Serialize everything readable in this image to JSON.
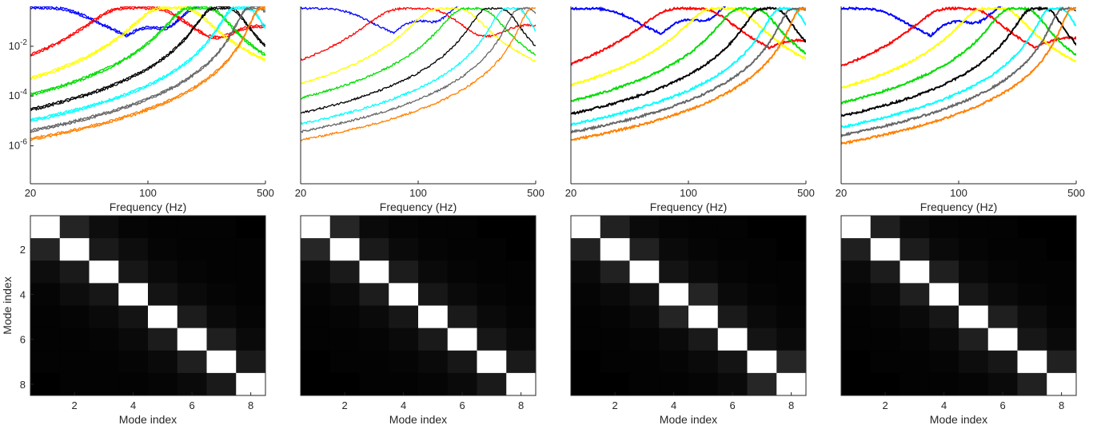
{
  "chart_data": [
    {
      "type": "line",
      "panel": 1,
      "xlabel": "Frequency (Hz)",
      "xscale": "log",
      "yscale": "log",
      "xlim": [
        20,
        500
      ],
      "ylim": [
        3e-08,
        0.4
      ],
      "xticks": [
        20,
        100,
        500
      ],
      "yticks": [
        {
          "value": 0.01,
          "label": "10^-2"
        },
        {
          "value": 0.0001,
          "label": "10^-4"
        },
        {
          "value": 1e-06,
          "label": "10^-6"
        }
      ],
      "series": [
        {
          "color": "#0000ff",
          "peak_hz": 20,
          "width": 0.6,
          "floor": 0.0004,
          "floor_slope": 0.9,
          "doubled": true
        },
        {
          "color": "#ff0000",
          "peak_hz": 88,
          "width": 0.42,
          "floor": 0.0025,
          "floor_slope": 0.3,
          "doubled": true
        },
        {
          "color": "#ffff00",
          "peak_hz": 140,
          "width": 0.32,
          "floor": 1.8e-05,
          "floor_slope": 0.45,
          "doubled": true
        },
        {
          "color": "#00dd00",
          "peak_hz": 200,
          "width": 0.26,
          "floor": 4e-06,
          "floor_slope": 0.55,
          "doubled": true
        },
        {
          "color": "#000000",
          "peak_hz": 275,
          "width": 0.21,
          "floor": 1.1e-06,
          "floor_slope": 0.65,
          "doubled": true
        },
        {
          "color": "#00ffff",
          "peak_hz": 360,
          "width": 0.18,
          "floor": 3.5e-07,
          "floor_slope": 0.75,
          "doubled": true
        },
        {
          "color": "#666666",
          "peak_hz": 430,
          "width": 0.15,
          "floor": 1.2e-07,
          "floor_slope": 0.85,
          "doubled": true
        },
        {
          "color": "#ff8000",
          "peak_hz": 500,
          "width": 0.13,
          "floor": 4.5e-08,
          "floor_slope": 0.95,
          "doubled": true
        }
      ]
    },
    {
      "type": "line",
      "panel": 2,
      "xlabel": "Frequency (Hz)",
      "xscale": "log",
      "yscale": "log",
      "xlim": [
        20,
        500
      ],
      "ylim": [
        3e-08,
        0.4
      ],
      "xticks": [
        20,
        100,
        500
      ],
      "series": [
        {
          "color": "#0000ff",
          "peak_hz": 22,
          "width": 0.58,
          "floor": 0.0008,
          "floor_slope": 0.9
        },
        {
          "color": "#ff0000",
          "peak_hz": 95,
          "width": 0.4,
          "floor": 0.003,
          "floor_slope": 0.3
        },
        {
          "color": "#ffff00",
          "peak_hz": 150,
          "width": 0.3,
          "floor": 3e-05,
          "floor_slope": 0.45
        },
        {
          "color": "#00dd00",
          "peak_hz": 210,
          "width": 0.25,
          "floor": 6e-06,
          "floor_slope": 0.55
        },
        {
          "color": "#000000",
          "peak_hz": 285,
          "width": 0.2,
          "floor": 1.6e-06,
          "floor_slope": 0.65
        },
        {
          "color": "#00ffff",
          "peak_hz": 360,
          "width": 0.17,
          "floor": 5e-07,
          "floor_slope": 0.75
        },
        {
          "color": "#666666",
          "peak_hz": 430,
          "width": 0.15,
          "floor": 1.8e-07,
          "floor_slope": 0.85
        },
        {
          "color": "#ff8000",
          "peak_hz": 500,
          "width": 0.13,
          "floor": 6.5e-08,
          "floor_slope": 0.95
        }
      ]
    },
    {
      "type": "line",
      "panel": 3,
      "xlabel": "Frequency (Hz)",
      "xscale": "log",
      "yscale": "log",
      "xlim": [
        20,
        500
      ],
      "ylim": [
        3e-08,
        0.4
      ],
      "xticks": [
        20,
        100,
        500
      ],
      "series": [
        {
          "color": "#0000ff",
          "peak_hz": 22,
          "width": 0.55,
          "floor": 0.0009,
          "floor_slope": 0.9
        },
        {
          "color": "#ff0000",
          "peak_hz": 100,
          "width": 0.38,
          "floor": 0.0012,
          "floor_slope": 0.25
        },
        {
          "color": "#ffff00",
          "peak_hz": 160,
          "width": 0.3,
          "floor": 2e-05,
          "floor_slope": 0.45
        },
        {
          "color": "#00dd00",
          "peak_hz": 225,
          "width": 0.24,
          "floor": 4e-06,
          "floor_slope": 0.55
        },
        {
          "color": "#000000",
          "peak_hz": 300,
          "width": 0.2,
          "floor": 1.1e-06,
          "floor_slope": 0.65
        },
        {
          "color": "#00ffff",
          "peak_hz": 380,
          "width": 0.17,
          "floor": 3.5e-07,
          "floor_slope": 0.75
        },
        {
          "color": "#666666",
          "peak_hz": 445,
          "width": 0.15,
          "floor": 1.2e-07,
          "floor_slope": 0.85
        },
        {
          "color": "#ff8000",
          "peak_hz": 500,
          "width": 0.13,
          "floor": 4e-08,
          "floor_slope": 0.95
        }
      ]
    },
    {
      "type": "line",
      "panel": 4,
      "xlabel": "Frequency (Hz)",
      "xscale": "log",
      "yscale": "log",
      "xlim": [
        20,
        500
      ],
      "ylim": [
        3e-08,
        0.4
      ],
      "xticks": [
        20,
        100,
        500
      ],
      "series": [
        {
          "color": "#0000ff",
          "peak_hz": 22,
          "width": 0.52,
          "floor": 0.0013,
          "floor_slope": 0.8
        },
        {
          "color": "#ff0000",
          "peak_hz": 100,
          "width": 0.36,
          "floor": 0.0015,
          "floor_slope": 0.25
        },
        {
          "color": "#ffff00",
          "peak_hz": 160,
          "width": 0.28,
          "floor": 5e-05,
          "floor_slope": 0.4
        },
        {
          "color": "#00dd00",
          "peak_hz": 225,
          "width": 0.23,
          "floor": 1e-05,
          "floor_slope": 0.5
        },
        {
          "color": "#000000",
          "peak_hz": 300,
          "width": 0.19,
          "floor": 2.5e-06,
          "floor_slope": 0.6
        },
        {
          "color": "#00ffff",
          "peak_hz": 380,
          "width": 0.16,
          "floor": 8e-07,
          "floor_slope": 0.7
        },
        {
          "color": "#666666",
          "peak_hz": 445,
          "width": 0.14,
          "floor": 2.5e-07,
          "floor_slope": 0.8
        },
        {
          "color": "#ff8000",
          "peak_hz": 500,
          "width": 0.12,
          "floor": 8e-08,
          "floor_slope": 0.9
        }
      ]
    },
    {
      "type": "heatmap",
      "panel": 5,
      "xlabel": "Mode index",
      "ylabel": "Mode index",
      "xticks": [
        2,
        4,
        6,
        8
      ],
      "yticks": [
        2,
        4,
        6,
        8
      ],
      "matrix": [
        [
          1.0,
          0.14,
          0.05,
          0.02,
          0.01,
          0.01,
          0.01,
          0.0
        ],
        [
          0.14,
          1.0,
          0.1,
          0.05,
          0.02,
          0.01,
          0.01,
          0.01
        ],
        [
          0.05,
          0.1,
          1.0,
          0.09,
          0.04,
          0.02,
          0.01,
          0.01
        ],
        [
          0.02,
          0.05,
          0.09,
          1.0,
          0.08,
          0.04,
          0.02,
          0.01
        ],
        [
          0.01,
          0.02,
          0.04,
          0.08,
          1.0,
          0.11,
          0.04,
          0.02
        ],
        [
          0.01,
          0.01,
          0.02,
          0.04,
          0.11,
          1.0,
          0.12,
          0.04
        ],
        [
          0.01,
          0.01,
          0.01,
          0.02,
          0.04,
          0.12,
          1.0,
          0.1
        ],
        [
          0.0,
          0.01,
          0.01,
          0.01,
          0.02,
          0.04,
          0.1,
          1.0
        ]
      ]
    },
    {
      "type": "heatmap",
      "panel": 6,
      "xlabel": "Mode index",
      "xticks": [
        2,
        4,
        6,
        8
      ],
      "matrix": [
        [
          1.0,
          0.15,
          0.04,
          0.02,
          0.01,
          0.01,
          0.0,
          0.0
        ],
        [
          0.15,
          1.0,
          0.1,
          0.04,
          0.02,
          0.01,
          0.01,
          0.0
        ],
        [
          0.04,
          0.1,
          1.0,
          0.11,
          0.04,
          0.02,
          0.01,
          0.01
        ],
        [
          0.02,
          0.04,
          0.11,
          1.0,
          0.09,
          0.04,
          0.02,
          0.01
        ],
        [
          0.01,
          0.02,
          0.04,
          0.09,
          1.0,
          0.1,
          0.04,
          0.02
        ],
        [
          0.01,
          0.01,
          0.02,
          0.04,
          0.1,
          1.0,
          0.09,
          0.04
        ],
        [
          0.0,
          0.01,
          0.01,
          0.02,
          0.04,
          0.09,
          1.0,
          0.1
        ],
        [
          0.0,
          0.0,
          0.01,
          0.01,
          0.02,
          0.04,
          0.1,
          1.0
        ]
      ]
    },
    {
      "type": "heatmap",
      "panel": 7,
      "xlabel": "Mode index",
      "xticks": [
        2,
        4,
        6,
        8
      ],
      "matrix": [
        [
          1.0,
          0.13,
          0.04,
          0.02,
          0.01,
          0.01,
          0.0,
          0.0
        ],
        [
          0.13,
          1.0,
          0.13,
          0.04,
          0.02,
          0.01,
          0.01,
          0.0
        ],
        [
          0.04,
          0.13,
          1.0,
          0.08,
          0.04,
          0.02,
          0.01,
          0.01
        ],
        [
          0.02,
          0.04,
          0.08,
          1.0,
          0.14,
          0.04,
          0.02,
          0.01
        ],
        [
          0.01,
          0.02,
          0.04,
          0.14,
          1.0,
          0.1,
          0.04,
          0.02
        ],
        [
          0.01,
          0.01,
          0.02,
          0.04,
          0.1,
          1.0,
          0.08,
          0.04
        ],
        [
          0.0,
          0.01,
          0.01,
          0.02,
          0.04,
          0.08,
          1.0,
          0.15
        ],
        [
          0.0,
          0.0,
          0.01,
          0.01,
          0.02,
          0.04,
          0.15,
          1.0
        ]
      ]
    },
    {
      "type": "heatmap",
      "panel": 8,
      "xlabel": "Mode index",
      "xticks": [
        2,
        4,
        6,
        8
      ],
      "matrix": [
        [
          1.0,
          0.12,
          0.04,
          0.02,
          0.01,
          0.01,
          0.0,
          0.0
        ],
        [
          0.12,
          1.0,
          0.11,
          0.04,
          0.02,
          0.01,
          0.01,
          0.0
        ],
        [
          0.04,
          0.11,
          1.0,
          0.12,
          0.04,
          0.02,
          0.01,
          0.01
        ],
        [
          0.02,
          0.04,
          0.12,
          1.0,
          0.09,
          0.04,
          0.02,
          0.01
        ],
        [
          0.01,
          0.02,
          0.04,
          0.09,
          1.0,
          0.12,
          0.05,
          0.02
        ],
        [
          0.01,
          0.01,
          0.02,
          0.04,
          0.12,
          1.0,
          0.09,
          0.04
        ],
        [
          0.0,
          0.01,
          0.01,
          0.02,
          0.05,
          0.09,
          1.0,
          0.13
        ],
        [
          0.0,
          0.0,
          0.01,
          0.01,
          0.02,
          0.04,
          0.13,
          1.0
        ]
      ]
    }
  ]
}
